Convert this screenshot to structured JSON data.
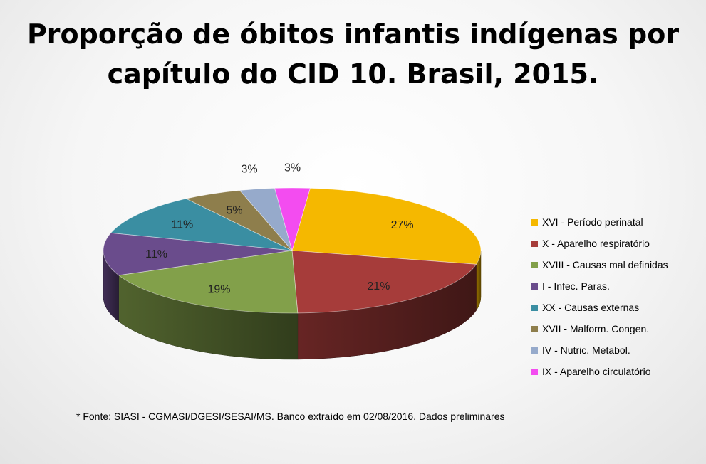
{
  "chart_data": {
    "type": "pie",
    "title_lines": [
      "Proporção de óbitos infantis indígenas por",
      "capítulo do CID 10. Brasil, 2015."
    ],
    "slices": [
      {
        "name": "XVI - Período perinatal",
        "value": 27,
        "label": "27%",
        "color": "#F5B800"
      },
      {
        "name": "X - Aparelho respiratório",
        "value": 21,
        "label": "21%",
        "color": "#A63C3A"
      },
      {
        "name": "XVIII - Causas mal definidas",
        "value": 19,
        "label": "19%",
        "color": "#82A04A"
      },
      {
        "name": "I - Infec. Paras.",
        "value": 11,
        "label": "11%",
        "color": "#6A4C8C"
      },
      {
        "name": "XX - Causas externas",
        "value": 11,
        "label": "11%",
        "color": "#3A8EA2"
      },
      {
        "name": "XVII - Malform. Congen.",
        "value": 5,
        "label": "5%",
        "color": "#8E7E4C"
      },
      {
        "name": "IV - Nutric. Metabol.",
        "value": 3,
        "label": "3%",
        "color": "#96AACB"
      },
      {
        "name": "IX - Aparelho circulatório",
        "value": 3,
        "label": "3%",
        "color": "#F34CF0"
      }
    ],
    "legend_position": "right"
  },
  "footnote": "* Fonte: SIASI - CGMASI/DGESI/SESAI/MS. Banco extraído em 02/08/2016. Dados preliminares"
}
